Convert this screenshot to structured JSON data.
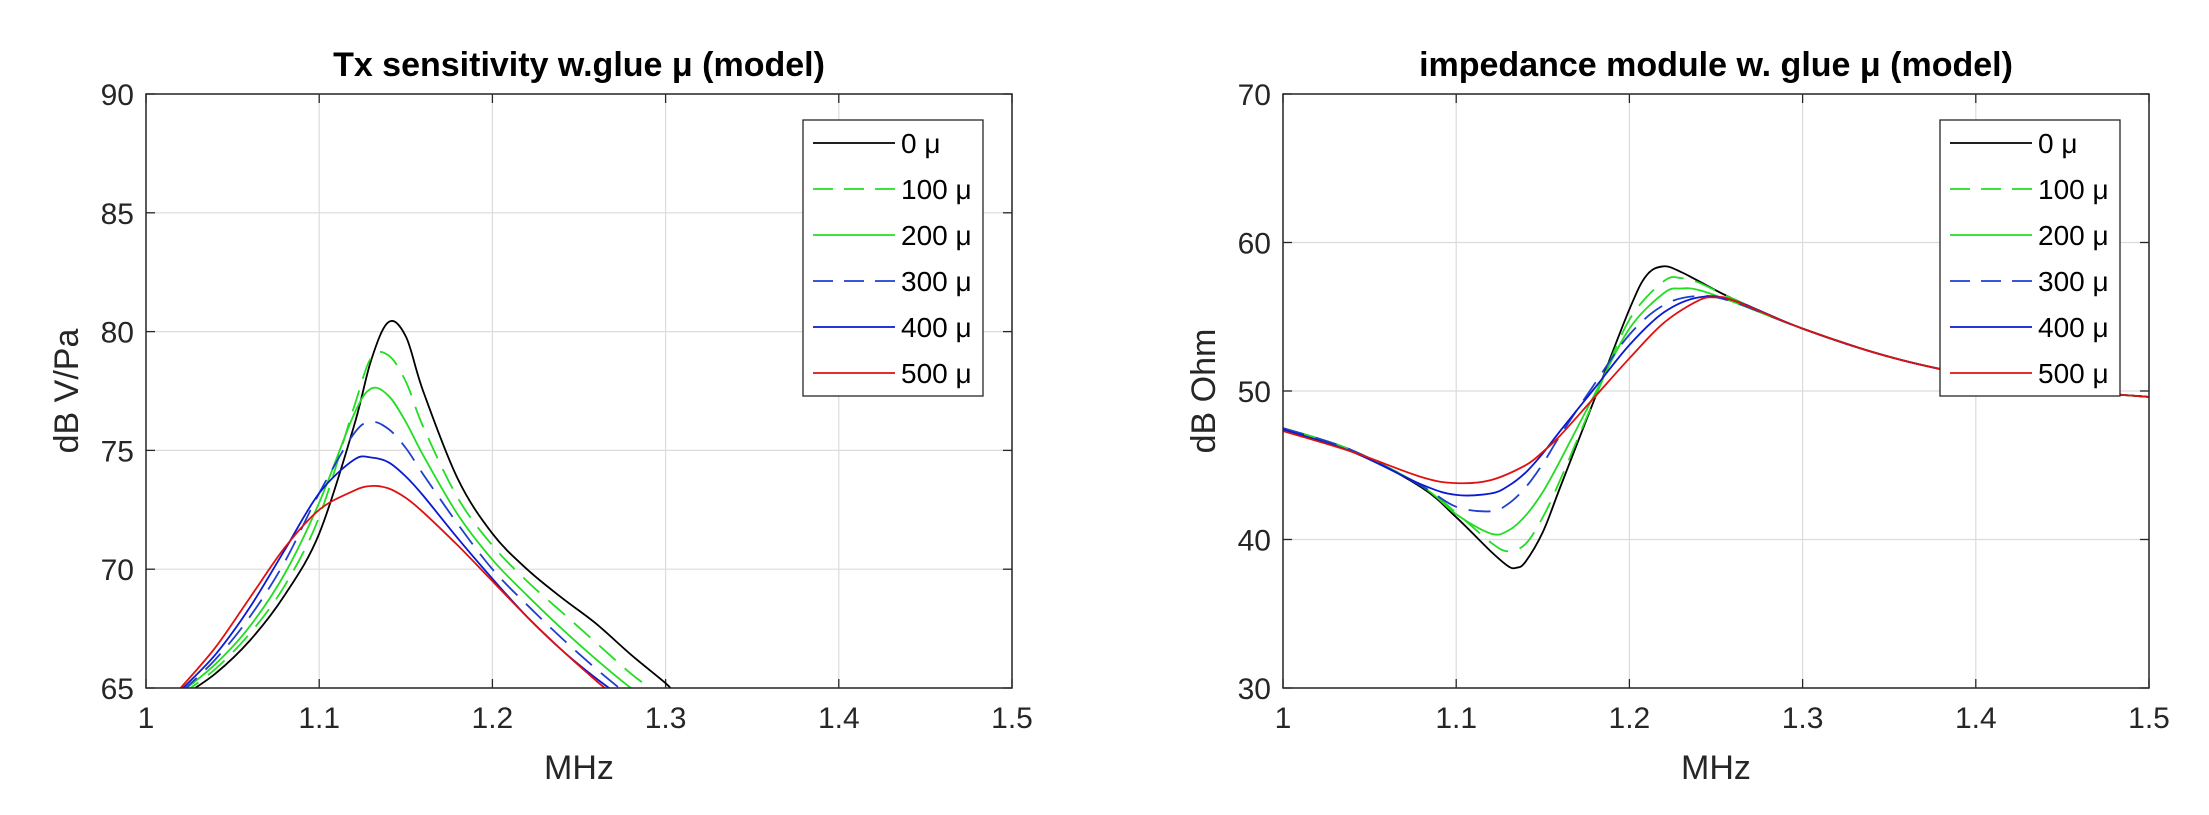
{
  "chart_data": [
    {
      "type": "line",
      "title": "Tx sensitivity w.glue μ  (model)",
      "xlabel": "MHz",
      "ylabel": "dB V/Pa",
      "xlim": [
        1,
        1.5
      ],
      "ylim": [
        65,
        90
      ],
      "xticks": [
        "1",
        "1.1",
        "1.2",
        "1.3",
        "1.4",
        "1.5"
      ],
      "yticks": [
        "65",
        "70",
        "75",
        "80",
        "85",
        "90"
      ],
      "grid": true,
      "legend_position": "top-right",
      "series": [
        {
          "name": "0 μ",
          "color": "#000000",
          "dash": "solid",
          "x": [
            1.02,
            1.04,
            1.06,
            1.08,
            1.1,
            1.12,
            1.13,
            1.14,
            1.15,
            1.16,
            1.18,
            1.2,
            1.22,
            1.24,
            1.26,
            1.28,
            1.3,
            1.305
          ],
          "y": [
            64.6,
            65.6,
            67.0,
            68.9,
            71.5,
            76.0,
            78.8,
            80.4,
            79.8,
            77.5,
            73.8,
            71.5,
            70.0,
            68.8,
            67.7,
            66.4,
            65.2,
            64.8
          ]
        },
        {
          "name": "100 μ",
          "color": "#22dd22",
          "dash": "dashed",
          "x": [
            1.02,
            1.04,
            1.06,
            1.08,
            1.1,
            1.12,
            1.13,
            1.14,
            1.15,
            1.16,
            1.18,
            1.2,
            1.22,
            1.24,
            1.26,
            1.28,
            1.295
          ],
          "y": [
            64.7,
            65.8,
            67.3,
            69.3,
            72.2,
            76.8,
            78.9,
            79.0,
            77.9,
            76.0,
            73.0,
            71.0,
            69.5,
            68.2,
            66.9,
            65.6,
            64.8
          ]
        },
        {
          "name": "200 μ",
          "color": "#22dd22",
          "dash": "solid",
          "x": [
            1.02,
            1.04,
            1.06,
            1.08,
            1.1,
            1.12,
            1.13,
            1.14,
            1.15,
            1.16,
            1.18,
            1.2,
            1.22,
            1.24,
            1.26,
            1.28,
            1.29
          ],
          "y": [
            64.8,
            66.0,
            67.6,
            69.8,
            72.8,
            76.5,
            77.6,
            77.3,
            76.2,
            74.8,
            72.3,
            70.4,
            68.9,
            67.5,
            66.2,
            65.0,
            64.6
          ]
        },
        {
          "name": "300 μ",
          "color": "#1f3fcc",
          "dash": "dashed",
          "x": [
            1.02,
            1.04,
            1.06,
            1.08,
            1.1,
            1.12,
            1.13,
            1.14,
            1.15,
            1.16,
            1.18,
            1.2,
            1.22,
            1.24,
            1.26,
            1.28
          ],
          "y": [
            64.8,
            66.2,
            68.0,
            70.3,
            73.2,
            75.7,
            76.2,
            75.9,
            75.1,
            74.0,
            71.9,
            70.0,
            68.5,
            67.1,
            65.8,
            64.6
          ]
        },
        {
          "name": "400 μ",
          "color": "#0a1ad0",
          "dash": "solid",
          "x": [
            1.02,
            1.04,
            1.06,
            1.08,
            1.1,
            1.12,
            1.13,
            1.14,
            1.15,
            1.16,
            1.18,
            1.2,
            1.22,
            1.24,
            1.26,
            1.275
          ],
          "y": [
            64.9,
            66.4,
            68.4,
            70.8,
            73.2,
            74.6,
            74.7,
            74.5,
            73.9,
            73.1,
            71.3,
            69.6,
            68.0,
            66.6,
            65.4,
            64.6
          ]
        },
        {
          "name": "500 μ",
          "color": "#e01010",
          "dash": "solid",
          "x": [
            1.02,
            1.04,
            1.06,
            1.08,
            1.1,
            1.12,
            1.13,
            1.14,
            1.15,
            1.16,
            1.18,
            1.2,
            1.22,
            1.24,
            1.26,
            1.27
          ],
          "y": [
            65.0,
            66.7,
            68.8,
            70.9,
            72.5,
            73.3,
            73.5,
            73.4,
            73.0,
            72.4,
            71.0,
            69.5,
            68.0,
            66.6,
            65.3,
            64.7
          ]
        }
      ]
    },
    {
      "type": "line",
      "title": "impedance module w. glue μ  (model)",
      "xlabel": "MHz",
      "ylabel": "dB Ohm",
      "xlim": [
        1,
        1.5
      ],
      "ylim": [
        30,
        70
      ],
      "xticks": [
        "1",
        "1.1",
        "1.2",
        "1.3",
        "1.4",
        "1.5"
      ],
      "yticks": [
        "30",
        "40",
        "50",
        "60",
        "70"
      ],
      "grid": true,
      "legend_position": "top-right",
      "series": [
        {
          "name": "0 μ",
          "color": "#000000",
          "dash": "solid",
          "x": [
            1.0,
            1.04,
            1.08,
            1.1,
            1.12,
            1.13,
            1.135,
            1.14,
            1.15,
            1.16,
            1.18,
            1.2,
            1.21,
            1.22,
            1.23,
            1.24,
            1.26,
            1.3,
            1.35,
            1.4,
            1.45,
            1.5
          ],
          "y": [
            47.5,
            46.0,
            43.5,
            41.5,
            39.2,
            38.2,
            38.1,
            38.5,
            40.5,
            43.5,
            49.5,
            55.5,
            57.8,
            58.4,
            58.0,
            57.4,
            56.2,
            54.2,
            52.3,
            51.0,
            50.1,
            49.6
          ]
        },
        {
          "name": "100 μ",
          "color": "#22dd22",
          "dash": "dashed",
          "x": [
            1.0,
            1.04,
            1.08,
            1.1,
            1.12,
            1.13,
            1.14,
            1.15,
            1.16,
            1.18,
            1.2,
            1.22,
            1.23,
            1.24,
            1.26,
            1.3,
            1.35,
            1.4,
            1.45,
            1.5
          ],
          "y": [
            47.5,
            46.0,
            43.6,
            41.8,
            39.8,
            39.2,
            39.7,
            41.5,
            44.0,
            49.5,
            54.8,
            57.4,
            57.6,
            57.3,
            56.2,
            54.2,
            52.3,
            51.0,
            50.1,
            49.6
          ]
        },
        {
          "name": "200 μ",
          "color": "#22dd22",
          "dash": "solid",
          "x": [
            1.0,
            1.04,
            1.08,
            1.1,
            1.12,
            1.13,
            1.14,
            1.15,
            1.16,
            1.18,
            1.2,
            1.22,
            1.23,
            1.24,
            1.26,
            1.3,
            1.35,
            1.4,
            1.45,
            1.5
          ],
          "y": [
            47.5,
            46.0,
            43.6,
            41.7,
            40.4,
            40.6,
            41.6,
            43.2,
            45.3,
            49.8,
            54.2,
            56.6,
            56.9,
            56.8,
            56.0,
            54.2,
            52.3,
            51.0,
            50.1,
            49.6
          ]
        },
        {
          "name": "300 μ",
          "color": "#1f3fcc",
          "dash": "dashed",
          "x": [
            1.0,
            1.04,
            1.08,
            1.1,
            1.12,
            1.13,
            1.14,
            1.15,
            1.16,
            1.18,
            1.2,
            1.22,
            1.24,
            1.26,
            1.3,
            1.35,
            1.4,
            1.45,
            1.5
          ],
          "y": [
            47.5,
            46.0,
            43.6,
            42.2,
            41.9,
            42.4,
            43.5,
            45.1,
            47.0,
            50.5,
            53.8,
            55.8,
            56.4,
            56.0,
            54.2,
            52.3,
            51.0,
            50.1,
            49.6
          ]
        },
        {
          "name": "400 μ",
          "color": "#0a1ad0",
          "dash": "solid",
          "x": [
            1.0,
            1.04,
            1.08,
            1.1,
            1.12,
            1.13,
            1.14,
            1.15,
            1.16,
            1.18,
            1.2,
            1.22,
            1.24,
            1.26,
            1.3,
            1.35,
            1.4,
            1.45,
            1.5
          ],
          "y": [
            47.4,
            45.9,
            43.7,
            43.0,
            43.1,
            43.6,
            44.5,
            45.8,
            47.3,
            50.2,
            53.1,
            55.3,
            56.3,
            56.1,
            54.2,
            52.3,
            51.0,
            50.1,
            49.6
          ]
        },
        {
          "name": "500 μ",
          "color": "#e01010",
          "dash": "solid",
          "x": [
            1.0,
            1.04,
            1.08,
            1.1,
            1.12,
            1.14,
            1.15,
            1.16,
            1.18,
            1.2,
            1.22,
            1.24,
            1.25,
            1.26,
            1.3,
            1.35,
            1.4,
            1.45,
            1.5
          ],
          "y": [
            47.3,
            45.9,
            44.2,
            43.8,
            44.0,
            45.0,
            45.9,
            47.0,
            49.6,
            52.2,
            54.6,
            56.1,
            56.3,
            56.1,
            54.2,
            52.3,
            51.0,
            50.1,
            49.6
          ]
        }
      ]
    }
  ]
}
